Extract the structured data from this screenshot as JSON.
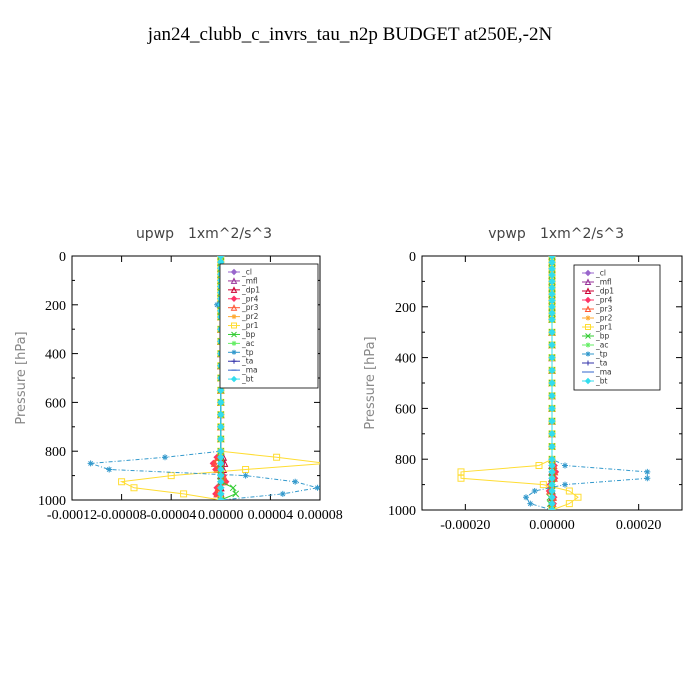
{
  "figure_title": "jan24_clubb_c_invrs_tau_n2p  BUDGET at250E,-2N",
  "chart_data": [
    {
      "type": "line",
      "title": "upwp",
      "units": "1xm^2/s^3",
      "ylabel": "Pressure [hPa]",
      "xlabel": "",
      "ylim": [
        1000,
        0
      ],
      "xlim": [
        -0.00012,
        8e-05
      ],
      "xticks": [
        -0.00012,
        -8e-05,
        -4e-05,
        0.0,
        4e-05,
        8e-05
      ],
      "xtick_labels": [
        "-0.00012",
        "-0.00008",
        "-0.00004",
        "0.00000",
        "0.00004",
        "0.00008"
      ],
      "yticks": [
        0,
        200,
        400,
        600,
        800,
        1000
      ],
      "ytick_labels": [
        "0",
        "200",
        "400",
        "600",
        "800",
        "1000"
      ],
      "legend_position": "top-right",
      "pressure": [
        0,
        25,
        50,
        75,
        100,
        125,
        150,
        175,
        200,
        225,
        250,
        300,
        350,
        400,
        450,
        500,
        550,
        600,
        650,
        700,
        750,
        800,
        825,
        850,
        875,
        900,
        925,
        950,
        975,
        1000
      ],
      "series": [
        {
          "name": "_cl",
          "color": "#9966cc",
          "marker": "diamond",
          "values": [
            0,
            0,
            0,
            0,
            0,
            0,
            0,
            0,
            0,
            0,
            0,
            0,
            0,
            0,
            0,
            0,
            0,
            0,
            0,
            0,
            0,
            0,
            0,
            0,
            0,
            0,
            0,
            0,
            0,
            0
          ]
        },
        {
          "name": "_mfl",
          "color": "#993399",
          "marker": "triangle",
          "values": [
            0,
            0,
            0,
            0,
            0,
            0,
            0,
            0,
            0,
            0,
            0,
            0,
            0,
            0,
            0,
            0,
            0,
            0,
            0,
            0,
            0,
            0,
            0,
            0,
            0,
            0,
            0,
            0,
            0,
            0
          ]
        },
        {
          "name": "_dp1",
          "color": "#cc0033",
          "marker": "triangle",
          "values": [
            0,
            0,
            0,
            0,
            0,
            0,
            0,
            0,
            0,
            0,
            0,
            0,
            0,
            0,
            0,
            0,
            0,
            0,
            0,
            0,
            0,
            0,
            2e-06,
            3e-06,
            2e-06,
            0,
            0,
            0,
            0,
            0
          ]
        },
        {
          "name": "_pr4",
          "color": "#ff3366",
          "marker": "diamond",
          "values": [
            0,
            0,
            0,
            0,
            0,
            0,
            0,
            0,
            0,
            0,
            0,
            0,
            0,
            0,
            0,
            0,
            0,
            0,
            0,
            0,
            0,
            0,
            -3e-06,
            -6e-06,
            -4e-06,
            2e-06,
            4e-06,
            -3e-06,
            -4e-06,
            0
          ]
        },
        {
          "name": "_pr3",
          "color": "#ff5533",
          "marker": "triangle",
          "values": [
            0,
            0,
            0,
            0,
            0,
            0,
            0,
            0,
            0,
            0,
            0,
            0,
            0,
            0,
            0,
            0,
            0,
            0,
            0,
            0,
            0,
            0,
            -2e-06,
            -5e-06,
            -3e-06,
            2e-06,
            3e-06,
            -2e-06,
            -3e-06,
            0
          ]
        },
        {
          "name": "_pr2",
          "color": "#ffaa33",
          "marker": "star",
          "values": [
            0,
            0,
            0,
            0,
            0,
            0,
            0,
            0,
            2e-06,
            0,
            0,
            0,
            0,
            0,
            0,
            0,
            0,
            0,
            0,
            0,
            0,
            0,
            0,
            0,
            0,
            0,
            0,
            0,
            0,
            0
          ]
        },
        {
          "name": "_pr1",
          "color": "#ffdd33",
          "marker": "square",
          "values": [
            0,
            0,
            0,
            0,
            0,
            0,
            0,
            0,
            1.5e-06,
            0,
            0,
            0,
            0,
            0,
            0,
            0,
            0,
            0,
            0,
            0,
            0,
            0,
            4.5e-05,
            8.5e-05,
            2e-05,
            -4e-05,
            -8e-05,
            -7e-05,
            -3e-05,
            0
          ]
        },
        {
          "name": "_bp",
          "color": "#33cc33",
          "marker": "cross",
          "values": [
            0,
            0,
            0,
            0,
            0,
            0,
            0,
            0,
            0,
            0,
            0,
            0,
            0,
            0,
            0,
            0,
            0,
            0,
            0,
            0,
            0,
            0,
            0,
            0,
            0,
            0,
            0,
            1e-05,
            1.2e-05,
            0
          ]
        },
        {
          "name": "_ac",
          "color": "#66ee66",
          "marker": "star",
          "values": [
            0,
            0,
            0,
            0,
            0,
            0,
            0,
            0,
            0,
            0,
            0,
            0,
            0,
            0,
            0,
            0,
            0,
            0,
            0,
            0,
            0,
            0,
            0,
            0,
            0,
            0,
            0,
            0,
            0,
            0
          ]
        },
        {
          "name": "_tp",
          "color": "#3399cc",
          "marker": "star",
          "values": [
            0,
            0,
            0,
            0,
            0,
            0,
            0,
            0,
            -3e-06,
            0,
            0,
            0,
            0,
            0,
            0,
            0,
            0,
            0,
            0,
            0,
            0,
            0,
            -4.5e-05,
            -0.000105,
            -9e-05,
            2e-05,
            6e-05,
            7.8e-05,
            5e-05,
            0
          ]
        },
        {
          "name": "_ta",
          "color": "#3333aa",
          "marker": "plus",
          "values": [
            0,
            0,
            0,
            0,
            0,
            0,
            0,
            0,
            0,
            0,
            0,
            0,
            0,
            0,
            0,
            0,
            0,
            0,
            0,
            0,
            0,
            0,
            0,
            0,
            0,
            0,
            0,
            0,
            0,
            0
          ]
        },
        {
          "name": "_ma",
          "color": "#3366cc",
          "marker": "dash",
          "values": [
            0,
            0,
            0,
            0,
            0,
            0,
            0,
            0,
            0,
            0,
            0,
            0,
            0,
            0,
            0,
            0,
            0,
            0,
            0,
            0,
            0,
            0,
            0,
            0,
            0,
            0,
            0,
            0,
            0,
            0
          ]
        },
        {
          "name": "_bt",
          "color": "#33ddee",
          "marker": "diamond",
          "values": [
            0,
            0,
            0,
            0,
            0,
            0,
            0,
            0,
            0,
            0,
            0,
            0,
            0,
            0,
            0,
            0,
            0,
            0,
            0,
            0,
            0,
            0,
            0,
            0,
            0,
            0,
            0,
            0,
            0,
            0
          ]
        }
      ]
    },
    {
      "type": "line",
      "title": "vpwp",
      "units": "1xm^2/s^3",
      "ylabel": "Pressure [hPa]",
      "xlabel": "",
      "ylim": [
        1000,
        0
      ],
      "xlim": [
        -0.0003,
        0.0003
      ],
      "xticks": [
        -0.0002,
        0.0,
        0.0002
      ],
      "xtick_labels": [
        "-0.00020",
        "0.00000",
        "0.00020"
      ],
      "yticks": [
        0,
        200,
        400,
        600,
        800,
        1000
      ],
      "ytick_labels": [
        "0",
        "200",
        "400",
        "600",
        "800",
        "1000"
      ],
      "legend_position": "top-right",
      "pressure": [
        0,
        25,
        50,
        75,
        100,
        125,
        150,
        175,
        200,
        225,
        250,
        300,
        350,
        400,
        450,
        500,
        550,
        600,
        650,
        700,
        750,
        800,
        825,
        850,
        875,
        900,
        925,
        950,
        975,
        1000
      ],
      "series": [
        {
          "name": "_cl",
          "color": "#9966cc",
          "marker": "diamond",
          "values": [
            0,
            0,
            0,
            0,
            0,
            0,
            0,
            0,
            0,
            0,
            0,
            0,
            0,
            0,
            0,
            0,
            0,
            0,
            0,
            0,
            0,
            0,
            0,
            0,
            0,
            0,
            0,
            0,
            0,
            0
          ]
        },
        {
          "name": "_mfl",
          "color": "#993399",
          "marker": "triangle",
          "values": [
            0,
            0,
            0,
            0,
            0,
            0,
            0,
            0,
            0,
            0,
            0,
            0,
            0,
            0,
            0,
            0,
            0,
            0,
            0,
            0,
            0,
            0,
            0,
            0,
            0,
            0,
            0,
            0,
            0,
            0
          ]
        },
        {
          "name": "_dp1",
          "color": "#cc0033",
          "marker": "triangle",
          "values": [
            0,
            0,
            0,
            0,
            0,
            0,
            0,
            0,
            0,
            0,
            0,
            0,
            0,
            0,
            0,
            0,
            0,
            0,
            0,
            0,
            0,
            0,
            0,
            0,
            0,
            0,
            0,
            0,
            0,
            0
          ]
        },
        {
          "name": "_pr4",
          "color": "#ff3366",
          "marker": "diamond",
          "values": [
            0,
            0,
            0,
            0,
            0,
            0,
            0,
            0,
            0,
            0,
            0,
            0,
            0,
            0,
            0,
            0,
            0,
            0,
            0,
            0,
            0,
            0,
            5e-06,
            8e-06,
            6e-06,
            -4e-06,
            -6e-06,
            4e-06,
            3e-06,
            0
          ]
        },
        {
          "name": "_pr3",
          "color": "#ff5533",
          "marker": "triangle",
          "values": [
            0,
            0,
            0,
            0,
            0,
            0,
            0,
            0,
            0,
            0,
            0,
            0,
            0,
            0,
            0,
            0,
            0,
            0,
            0,
            0,
            0,
            0,
            4e-06,
            6e-06,
            5e-06,
            -3e-06,
            -5e-06,
            3e-06,
            2e-06,
            0
          ]
        },
        {
          "name": "_pr2",
          "color": "#ffaa33",
          "marker": "star",
          "values": [
            0,
            0,
            0,
            0,
            0,
            0,
            0,
            0,
            0,
            0,
            0,
            0,
            0,
            0,
            0,
            0,
            0,
            0,
            0,
            0,
            0,
            0,
            0,
            0,
            0,
            0,
            0,
            0,
            0,
            0
          ]
        },
        {
          "name": "_pr1",
          "color": "#ffdd33",
          "marker": "square",
          "values": [
            0,
            0,
            0,
            0,
            0,
            0,
            0,
            0,
            0,
            0,
            0,
            0,
            0,
            0,
            0,
            0,
            0,
            0,
            0,
            0,
            0,
            0,
            -3e-05,
            -0.00021,
            -0.00021,
            -2e-05,
            4e-05,
            6e-05,
            4e-05,
            0
          ]
        },
        {
          "name": "_bp",
          "color": "#33cc33",
          "marker": "cross",
          "values": [
            0,
            0,
            0,
            0,
            0,
            0,
            0,
            0,
            0,
            0,
            0,
            0,
            0,
            0,
            0,
            0,
            0,
            0,
            0,
            0,
            0,
            0,
            0,
            0,
            0,
            0,
            0,
            -5e-06,
            -4e-06,
            0
          ]
        },
        {
          "name": "_ac",
          "color": "#66ee66",
          "marker": "star",
          "values": [
            0,
            0,
            0,
            0,
            0,
            0,
            0,
            0,
            0,
            0,
            0,
            0,
            0,
            0,
            0,
            0,
            0,
            0,
            0,
            0,
            0,
            0,
            0,
            0,
            0,
            0,
            0,
            0,
            0,
            0
          ]
        },
        {
          "name": "_tp",
          "color": "#3399cc",
          "marker": "star",
          "values": [
            0,
            0,
            0,
            0,
            0,
            0,
            0,
            0,
            0,
            0,
            0,
            0,
            0,
            0,
            0,
            0,
            0,
            0,
            0,
            0,
            0,
            0,
            3e-05,
            0.00022,
            0.00022,
            3e-05,
            -4e-05,
            -6e-05,
            -5e-05,
            0
          ]
        },
        {
          "name": "_ta",
          "color": "#3333aa",
          "marker": "plus",
          "values": [
            0,
            0,
            0,
            0,
            0,
            0,
            0,
            0,
            0,
            0,
            0,
            0,
            0,
            0,
            0,
            0,
            0,
            0,
            0,
            0,
            0,
            0,
            0,
            0,
            0,
            0,
            0,
            0,
            0,
            0
          ]
        },
        {
          "name": "_ma",
          "color": "#3366cc",
          "marker": "dash",
          "values": [
            0,
            0,
            0,
            0,
            0,
            0,
            0,
            0,
            0,
            0,
            0,
            0,
            0,
            0,
            0,
            0,
            0,
            0,
            0,
            0,
            0,
            0,
            0,
            0,
            0,
            0,
            0,
            0,
            0,
            0
          ]
        },
        {
          "name": "_bt",
          "color": "#33ddee",
          "marker": "diamond",
          "values": [
            0,
            0,
            0,
            0,
            0,
            0,
            0,
            0,
            0,
            0,
            0,
            0,
            0,
            0,
            0,
            0,
            0,
            0,
            0,
            0,
            0,
            0,
            0,
            0,
            0,
            0,
            0,
            0,
            0,
            0
          ]
        }
      ]
    }
  ]
}
